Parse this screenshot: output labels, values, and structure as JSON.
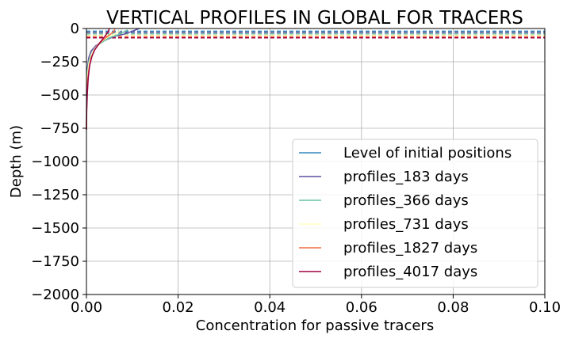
{
  "chart_data": {
    "type": "line",
    "title": "VERTICAL PROFILES IN GLOBAL FOR TRACERS",
    "xlabel": "Concentration for passive tracers",
    "ylabel": "Depth (m)",
    "xlim": [
      0,
      0.1
    ],
    "ylim": [
      -2000,
      0
    ],
    "x_ticks": [
      "0.00",
      "0.02",
      "0.04",
      "0.06",
      "0.08",
      "0.10"
    ],
    "y_ticks": [
      "0",
      "−250",
      "−500",
      "−750",
      "−1000",
      "−1250",
      "−1500",
      "−1750",
      "−2000"
    ],
    "x_tick_values": [
      0,
      0.02,
      0.04,
      0.06,
      0.08,
      0.1
    ],
    "y_tick_values": [
      0,
      -250,
      -500,
      -750,
      -1000,
      -1250,
      -1500,
      -1750,
      -2000
    ],
    "grid": true,
    "legend_position": "lower-right",
    "initial_levels": [
      {
        "depth": -20,
        "color": "#3288bd"
      },
      {
        "depth": -30,
        "color": "#5e4fa2"
      },
      {
        "depth": -40,
        "color": "#66c2a5"
      },
      {
        "depth": -50,
        "color": "#ffffbf"
      },
      {
        "depth": -60,
        "color": "#f46d43"
      },
      {
        "depth": -70,
        "color": "#9e0142"
      }
    ],
    "series": [
      {
        "name": "Level of initial positions",
        "color": "#3288bd",
        "kind": "dashed-level",
        "values": []
      },
      {
        "name": "profiles_183 days",
        "color": "#5e4fa2",
        "kind": "profile",
        "values": [
          [
            0.0115,
            0
          ],
          [
            0.01,
            -20
          ],
          [
            0.0085,
            -40
          ],
          [
            0.006,
            -60
          ],
          [
            0.004,
            -90
          ],
          [
            0.002,
            -130
          ],
          [
            0.001,
            -170
          ],
          [
            0.0005,
            -220
          ],
          [
            0.0002,
            -300
          ],
          [
            0.0001,
            -400
          ],
          [
            5e-05,
            -520
          ],
          [
            2e-05,
            -650
          ],
          [
            0.0,
            -760
          ]
        ]
      },
      {
        "name": "profiles_366 days",
        "color": "#66c2a5",
        "kind": "profile",
        "values": [
          [
            0.009,
            -10
          ],
          [
            0.0085,
            -20
          ],
          [
            0.007,
            -45
          ],
          [
            0.005,
            -70
          ],
          [
            0.0035,
            -100
          ],
          [
            0.002,
            -140
          ],
          [
            0.001,
            -190
          ],
          [
            0.0005,
            -250
          ],
          [
            0.0002,
            -330
          ],
          [
            0.0001,
            -430
          ],
          [
            5e-05,
            -550
          ],
          [
            0.0,
            -760
          ]
        ]
      },
      {
        "name": "profiles_731 days",
        "color": "#ffffbf",
        "kind": "profile",
        "values": [
          [
            0.0075,
            -10
          ],
          [
            0.007,
            -25
          ],
          [
            0.0055,
            -50
          ],
          [
            0.004,
            -80
          ],
          [
            0.0028,
            -110
          ],
          [
            0.0018,
            -150
          ],
          [
            0.001,
            -200
          ],
          [
            0.0005,
            -270
          ],
          [
            0.0002,
            -360
          ],
          [
            0.0001,
            -460
          ],
          [
            0.0,
            -760
          ]
        ]
      },
      {
        "name": "profiles_1827 days",
        "color": "#f46d43",
        "kind": "profile",
        "values": [
          [
            0.0062,
            -5
          ],
          [
            0.006,
            -20
          ],
          [
            0.005,
            -50
          ],
          [
            0.0038,
            -80
          ],
          [
            0.0028,
            -115
          ],
          [
            0.0018,
            -160
          ],
          [
            0.001,
            -220
          ],
          [
            0.0006,
            -290
          ],
          [
            0.0003,
            -380
          ],
          [
            0.0001,
            -500
          ],
          [
            0.0,
            -760
          ]
        ]
      },
      {
        "name": "profiles_4017 days",
        "color": "#9e0142",
        "kind": "profile",
        "values": [
          [
            0.005,
            0
          ],
          [
            0.0048,
            -20
          ],
          [
            0.0042,
            -50
          ],
          [
            0.0034,
            -85
          ],
          [
            0.0026,
            -120
          ],
          [
            0.0018,
            -160
          ],
          [
            0.0012,
            -210
          ],
          [
            0.0007,
            -280
          ],
          [
            0.0004,
            -370
          ],
          [
            0.0002,
            -480
          ],
          [
            5e-05,
            -620
          ],
          [
            0.0,
            -760
          ]
        ]
      }
    ]
  }
}
